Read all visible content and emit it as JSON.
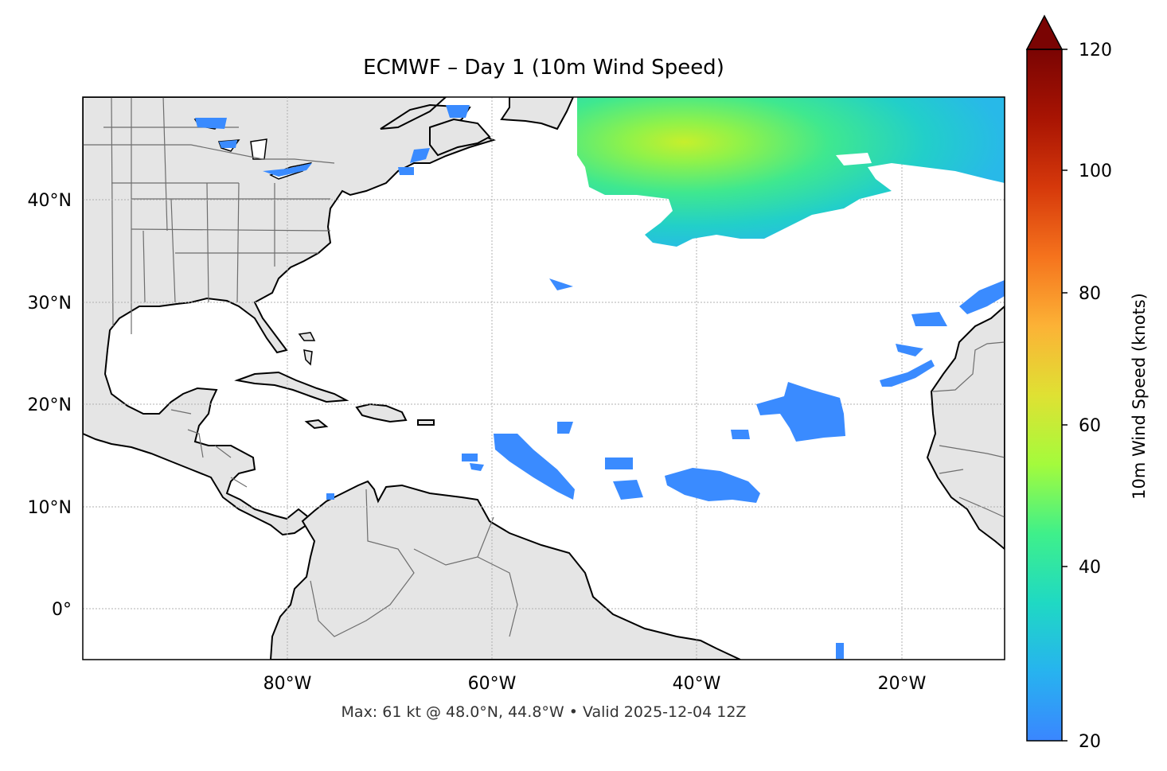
{
  "map": {
    "title": "ECMWF – Day 1 (10m Wind Speed)",
    "footer": "Max: 61 kt @ 48.0°N, 44.8°W • Valid 2025-12-04 12Z",
    "lat_labels": [
      "40°N",
      "30°N",
      "20°N",
      "10°N",
      "0°"
    ],
    "lon_labels": [
      "80°W",
      "60°W",
      "40°W",
      "20°W"
    ],
    "colors": {
      "land": "#e5e5e5",
      "coast": "#000000",
      "borders": "#6e6e6e",
      "grid": "#b0b0b0"
    }
  },
  "colorbar": {
    "label": "10m Wind Speed (knots)",
    "ticks": [
      "20",
      "40",
      "60",
      "80",
      "100",
      "120"
    ],
    "min": 20,
    "max": 120,
    "extend": "max",
    "cmap": "turbo"
  }
}
